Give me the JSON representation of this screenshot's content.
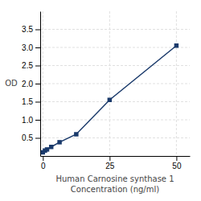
{
  "chart_data": {
    "type": "line",
    "x": [
      0,
      0.78,
      1.56,
      3.125,
      6.25,
      12.5,
      25,
      50
    ],
    "values": [
      0.1,
      0.15,
      0.18,
      0.25,
      0.38,
      0.6,
      1.55,
      3.05
    ],
    "xlabel": "Human Carnosine synthase 1\nConcentration (ng/ml)",
    "ylabel": "OD",
    "xlim": [
      -1,
      55
    ],
    "ylim": [
      0,
      4.0
    ],
    "xticks": [
      0,
      25,
      50
    ],
    "yticks": [
      0.5,
      {
        "value": 1.0,
        "label": "1.0"
      },
      1.5,
      {
        "value": 2.0,
        "label": "2.0"
      },
      2.5,
      {
        "value": 3.0,
        "label": "3.0"
      },
      3.5
    ],
    "color": "#1a3a6b",
    "marker": "square",
    "grid": true
  }
}
